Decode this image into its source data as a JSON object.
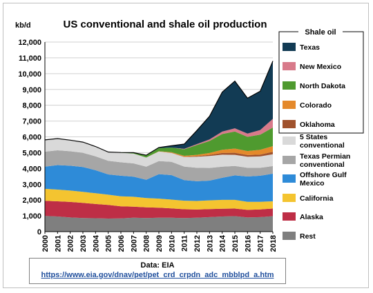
{
  "chart_data": {
    "type": "area",
    "stacked": true,
    "title": "US conventional and shale oil production",
    "ylabel": "kb/d",
    "xlabel": "",
    "ylim": [
      0,
      12000
    ],
    "yticks": [
      "0",
      "1,000",
      "2,000",
      "3,000",
      "4,000",
      "5,000",
      "6,000",
      "7,000",
      "8,000",
      "9,000",
      "10,000",
      "11,000",
      "12,000"
    ],
    "x": [
      "2000",
      "2001",
      "2002",
      "2003",
      "2004",
      "2005",
      "2006",
      "2007",
      "2008",
      "2009",
      "2010",
      "2011",
      "2012",
      "2013",
      "2014",
      "2015",
      "2016",
      "2017",
      "2018"
    ],
    "grid": true,
    "legend_position": "right",
    "legend_title": "Shale oil",
    "series": [
      {
        "name": "Rest",
        "color": "#7f7f7f",
        "values": [
          1000,
          960,
          900,
          860,
          850,
          830,
          840,
          880,
          860,
          880,
          880,
          860,
          880,
          920,
          960,
          980,
          900,
          920,
          980
        ]
      },
      {
        "name": "Alaska",
        "color": "#be2e46",
        "values": [
          950,
          960,
          980,
          960,
          900,
          860,
          760,
          700,
          680,
          640,
          590,
          560,
          520,
          510,
          490,
          480,
          480,
          490,
          480
        ]
      },
      {
        "name": "California",
        "color": "#f4c430",
        "values": [
          760,
          740,
          720,
          700,
          680,
          650,
          640,
          630,
          590,
          570,
          560,
          540,
          540,
          550,
          560,
          550,
          510,
          480,
          460
        ]
      },
      {
        "name": "Offshore Gulf Mexico",
        "color": "#2e8bd8",
        "values": [
          1400,
          1550,
          1570,
          1570,
          1460,
          1280,
          1300,
          1270,
          1150,
          1550,
          1550,
          1300,
          1250,
          1250,
          1400,
          1550,
          1600,
          1650,
          1750
        ]
      },
      {
        "name": "Texas Permian conventional",
        "color": "#a6a6a6",
        "values": [
          950,
          940,
          920,
          900,
          880,
          860,
          850,
          840,
          830,
          830,
          840,
          860,
          850,
          800,
          700,
          600,
          550,
          500,
          480
        ]
      },
      {
        "name": "5 States conventional",
        "color": "#d9d9d9",
        "values": [
          750,
          740,
          700,
          680,
          620,
          560,
          600,
          620,
          580,
          600,
          560,
          600,
          700,
          760,
          760,
          700,
          700,
          720,
          750
        ]
      },
      {
        "name": "Oklahoma",
        "color": "#a0522d",
        "values": [
          0,
          0,
          0,
          0,
          0,
          0,
          0,
          0,
          0,
          0,
          10,
          20,
          40,
          70,
          110,
          130,
          110,
          120,
          150
        ]
      },
      {
        "name": "Colorado",
        "color": "#e4892b",
        "values": [
          0,
          0,
          0,
          0,
          0,
          0,
          0,
          0,
          0,
          20,
          40,
          60,
          80,
          120,
          200,
          270,
          250,
          300,
          360
        ]
      },
      {
        "name": "North Dakota",
        "color": "#4f9a2f",
        "values": [
          0,
          0,
          0,
          0,
          0,
          0,
          10,
          40,
          120,
          200,
          290,
          410,
          620,
          760,
          1000,
          1080,
          900,
          960,
          1180
        ]
      },
      {
        "name": "New Mexico",
        "color": "#d87a8a",
        "values": [
          0,
          0,
          0,
          0,
          0,
          0,
          0,
          0,
          0,
          0,
          0,
          30,
          60,
          100,
          150,
          200,
          210,
          290,
          550
        ]
      },
      {
        "name": "Texas",
        "color": "#123b54",
        "values": [
          0,
          0,
          0,
          0,
          0,
          0,
          10,
          20,
          30,
          40,
          120,
          300,
          860,
          1460,
          2500,
          2990,
          2240,
          2460,
          3660
        ]
      }
    ]
  },
  "source": {
    "label": "Data: EIA",
    "url": "https://www.eia.gov/dnav/pet/pet_crd_crpdn_adc_mbblpd_a.htm"
  }
}
